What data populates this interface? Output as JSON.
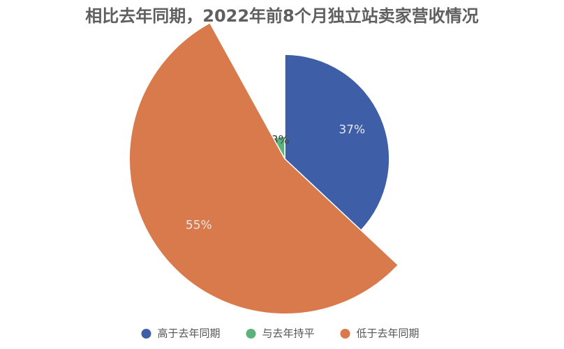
{
  "chart_data": {
    "type": "pie",
    "title": "相比去年同期，2022年前8个月独立站卖家营收情况",
    "categories": [
      "高于去年同期",
      "与去年持平",
      "低于去年同期"
    ],
    "values": [
      37,
      8,
      55
    ],
    "value_labels": [
      "37%",
      "8%",
      "55%"
    ],
    "colors": [
      "#3f5ea8",
      "#5bb27a",
      "#d97a4c"
    ],
    "legend": "bottom"
  }
}
